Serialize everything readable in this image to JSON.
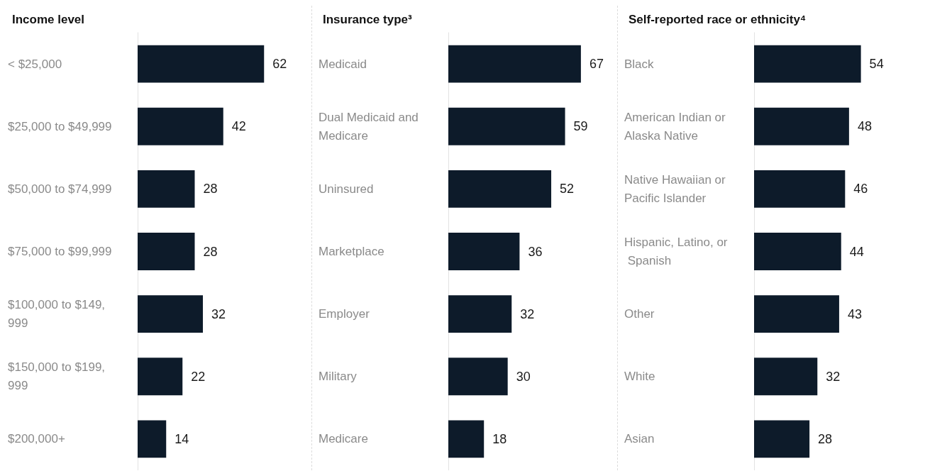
{
  "chart_data": [
    {
      "type": "bar",
      "orientation": "horizontal",
      "title": "Income level",
      "categories": [
        "< $25,000",
        "$25,000 to $49,999",
        "$50,000 to $74,999",
        "$75,000 to $99,999",
        "$100,000 to $149,999",
        "$150,000 to $199,999",
        "$200,000+"
      ],
      "values": [
        62,
        42,
        28,
        28,
        32,
        22,
        14
      ],
      "color": "#0d1b2a",
      "data_labels": true
    },
    {
      "type": "bar",
      "orientation": "horizontal",
      "title": "Insurance type³",
      "categories": [
        "Medicaid",
        "Dual Medicaid and Medicare",
        "Uninsured",
        "Marketplace",
        "Employer",
        "Military",
        "Medicare"
      ],
      "values": [
        67,
        59,
        52,
        36,
        32,
        30,
        18
      ],
      "color": "#0d1b2a",
      "data_labels": true
    },
    {
      "type": "bar",
      "orientation": "horizontal",
      "title": "Self-reported race or ethnicity⁴",
      "categories": [
        "Black",
        "American Indian or Alaska Native",
        "Native Hawaiian or Pacific Islander",
        "Hispanic, Latino, or Spanish",
        "Other",
        "White",
        "Asian"
      ],
      "values": [
        54,
        48,
        46,
        44,
        43,
        32,
        28
      ],
      "color": "#0d1b2a",
      "data_labels": true
    }
  ]
}
